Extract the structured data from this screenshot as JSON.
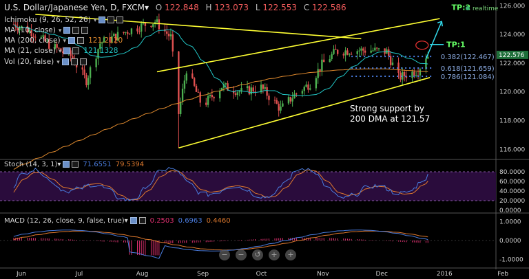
{
  "header": {
    "symbol": "U.S. Dollar/Japanese Yen, D, FXCM",
    "o_label": "O",
    "o": "122.848",
    "h_label": "H",
    "h": "123.073",
    "l_label": "L",
    "l": "122.553",
    "c_label": "C",
    "c": "122.586"
  },
  "realtime_label": "realtime",
  "indicators": [
    {
      "label": "Ichimoku (9, 26, 52, 26)",
      "value": ""
    },
    {
      "label": "MA (10, close)",
      "value": ""
    },
    {
      "label": "MA (200, close)",
      "value": "121.2120"
    },
    {
      "label": "MA (21, close)",
      "value": "121.1328"
    },
    {
      "label": "Vol (20, false)",
      "value": ""
    }
  ],
  "annotations": {
    "tp2": "TP:2",
    "tp1": "TP:1",
    "fib382": "0.382(122.467)",
    "fib618": "0.618(121.659)",
    "fib786": "0.786(121.084)",
    "note_line1": "Strong support by",
    "note_line2": "200 DMA at 121.57"
  },
  "price_badge": "122.576",
  "stoch": {
    "label": "Stoch (14, 3, 1)",
    "k": "71.6551",
    "d": "79.5394"
  },
  "macd": {
    "label": "MACD (12, 26, close, 9, false, true)",
    "hist": "0.2503",
    "macd": "0.6963",
    "signal": "0.4460"
  },
  "zoom_controls": [
    "−",
    "−",
    "↺",
    "+",
    "+"
  ],
  "colors": {
    "up": "#4caf50",
    "down": "#e05050",
    "trendline": "#ffff33",
    "ma_short": "#22c7c7",
    "ma_long": "#e08a2e",
    "stoch_k": "#4a7de0",
    "stoch_d": "#e07a2e",
    "macd": "#4a7de0",
    "signal": "#e07a2e",
    "hist": "#e03070",
    "fib": "#4a7de0",
    "tp": "#33ddee"
  },
  "chart_data": [
    {
      "type": "candlestick",
      "title": "U.S. Dollar/Japanese Yen, D, FXCM",
      "x_ticks": [
        "Jun",
        "Jul",
        "Aug",
        "Sep",
        "Oct",
        "Nov",
        "Dec",
        "2016",
        "Feb"
      ],
      "y_ticks": [
        "116.000",
        "118.000",
        "120.000",
        "122.000",
        "124.000",
        "126.000"
      ],
      "ylim": [
        115.3,
        126.3
      ],
      "last": 122.576,
      "levels": [
        122.467,
        121.659,
        121.084
      ],
      "close_path": [
        {
          "x": "2015-06-01",
          "y": 124.7
        },
        {
          "x": "2015-06-10",
          "y": 124.2
        },
        {
          "x": "2015-06-20",
          "y": 123.2
        },
        {
          "x": "2015-06-30",
          "y": 122.5
        },
        {
          "x": "2015-07-08",
          "y": 120.8
        },
        {
          "x": "2015-07-15",
          "y": 123.4
        },
        {
          "x": "2015-07-25",
          "y": 124.0
        },
        {
          "x": "2015-08-05",
          "y": 124.6
        },
        {
          "x": "2015-08-12",
          "y": 124.9
        },
        {
          "x": "2015-08-20",
          "y": 123.8
        },
        {
          "x": "2015-08-24",
          "y": 118.5
        },
        {
          "x": "2015-08-28",
          "y": 121.6
        },
        {
          "x": "2015-09-05",
          "y": 119.0
        },
        {
          "x": "2015-09-15",
          "y": 120.4
        },
        {
          "x": "2015-09-25",
          "y": 120.0
        },
        {
          "x": "2015-10-05",
          "y": 120.3
        },
        {
          "x": "2015-10-15",
          "y": 118.8
        },
        {
          "x": "2015-10-22",
          "y": 119.8
        },
        {
          "x": "2015-10-30",
          "y": 120.6
        },
        {
          "x": "2015-11-05",
          "y": 121.9
        },
        {
          "x": "2015-11-12",
          "y": 122.8
        },
        {
          "x": "2015-11-20",
          "y": 122.9
        },
        {
          "x": "2015-11-30",
          "y": 122.9
        },
        {
          "x": "2015-12-08",
          "y": 122.8
        },
        {
          "x": "2015-12-14",
          "y": 121.0
        },
        {
          "x": "2015-12-18",
          "y": 121.2
        },
        {
          "x": "2015-12-24",
          "y": 121.5
        },
        {
          "x": "2015-12-28",
          "y": 122.5
        }
      ]
    },
    {
      "type": "line",
      "title": "Stoch (14, 3, 1)",
      "y_ticks": [
        "0.0000",
        "20.0000",
        "40.0000",
        "60.0000",
        "80.0000"
      ],
      "ylim": [
        0,
        100
      ]
    },
    {
      "type": "line",
      "title": "MACD (12, 26, close, 9, false, true)",
      "y_ticks": [
        "-1.0000",
        "0.0000",
        "1.0000"
      ],
      "ylim": [
        -1.3,
        1.3
      ]
    }
  ]
}
